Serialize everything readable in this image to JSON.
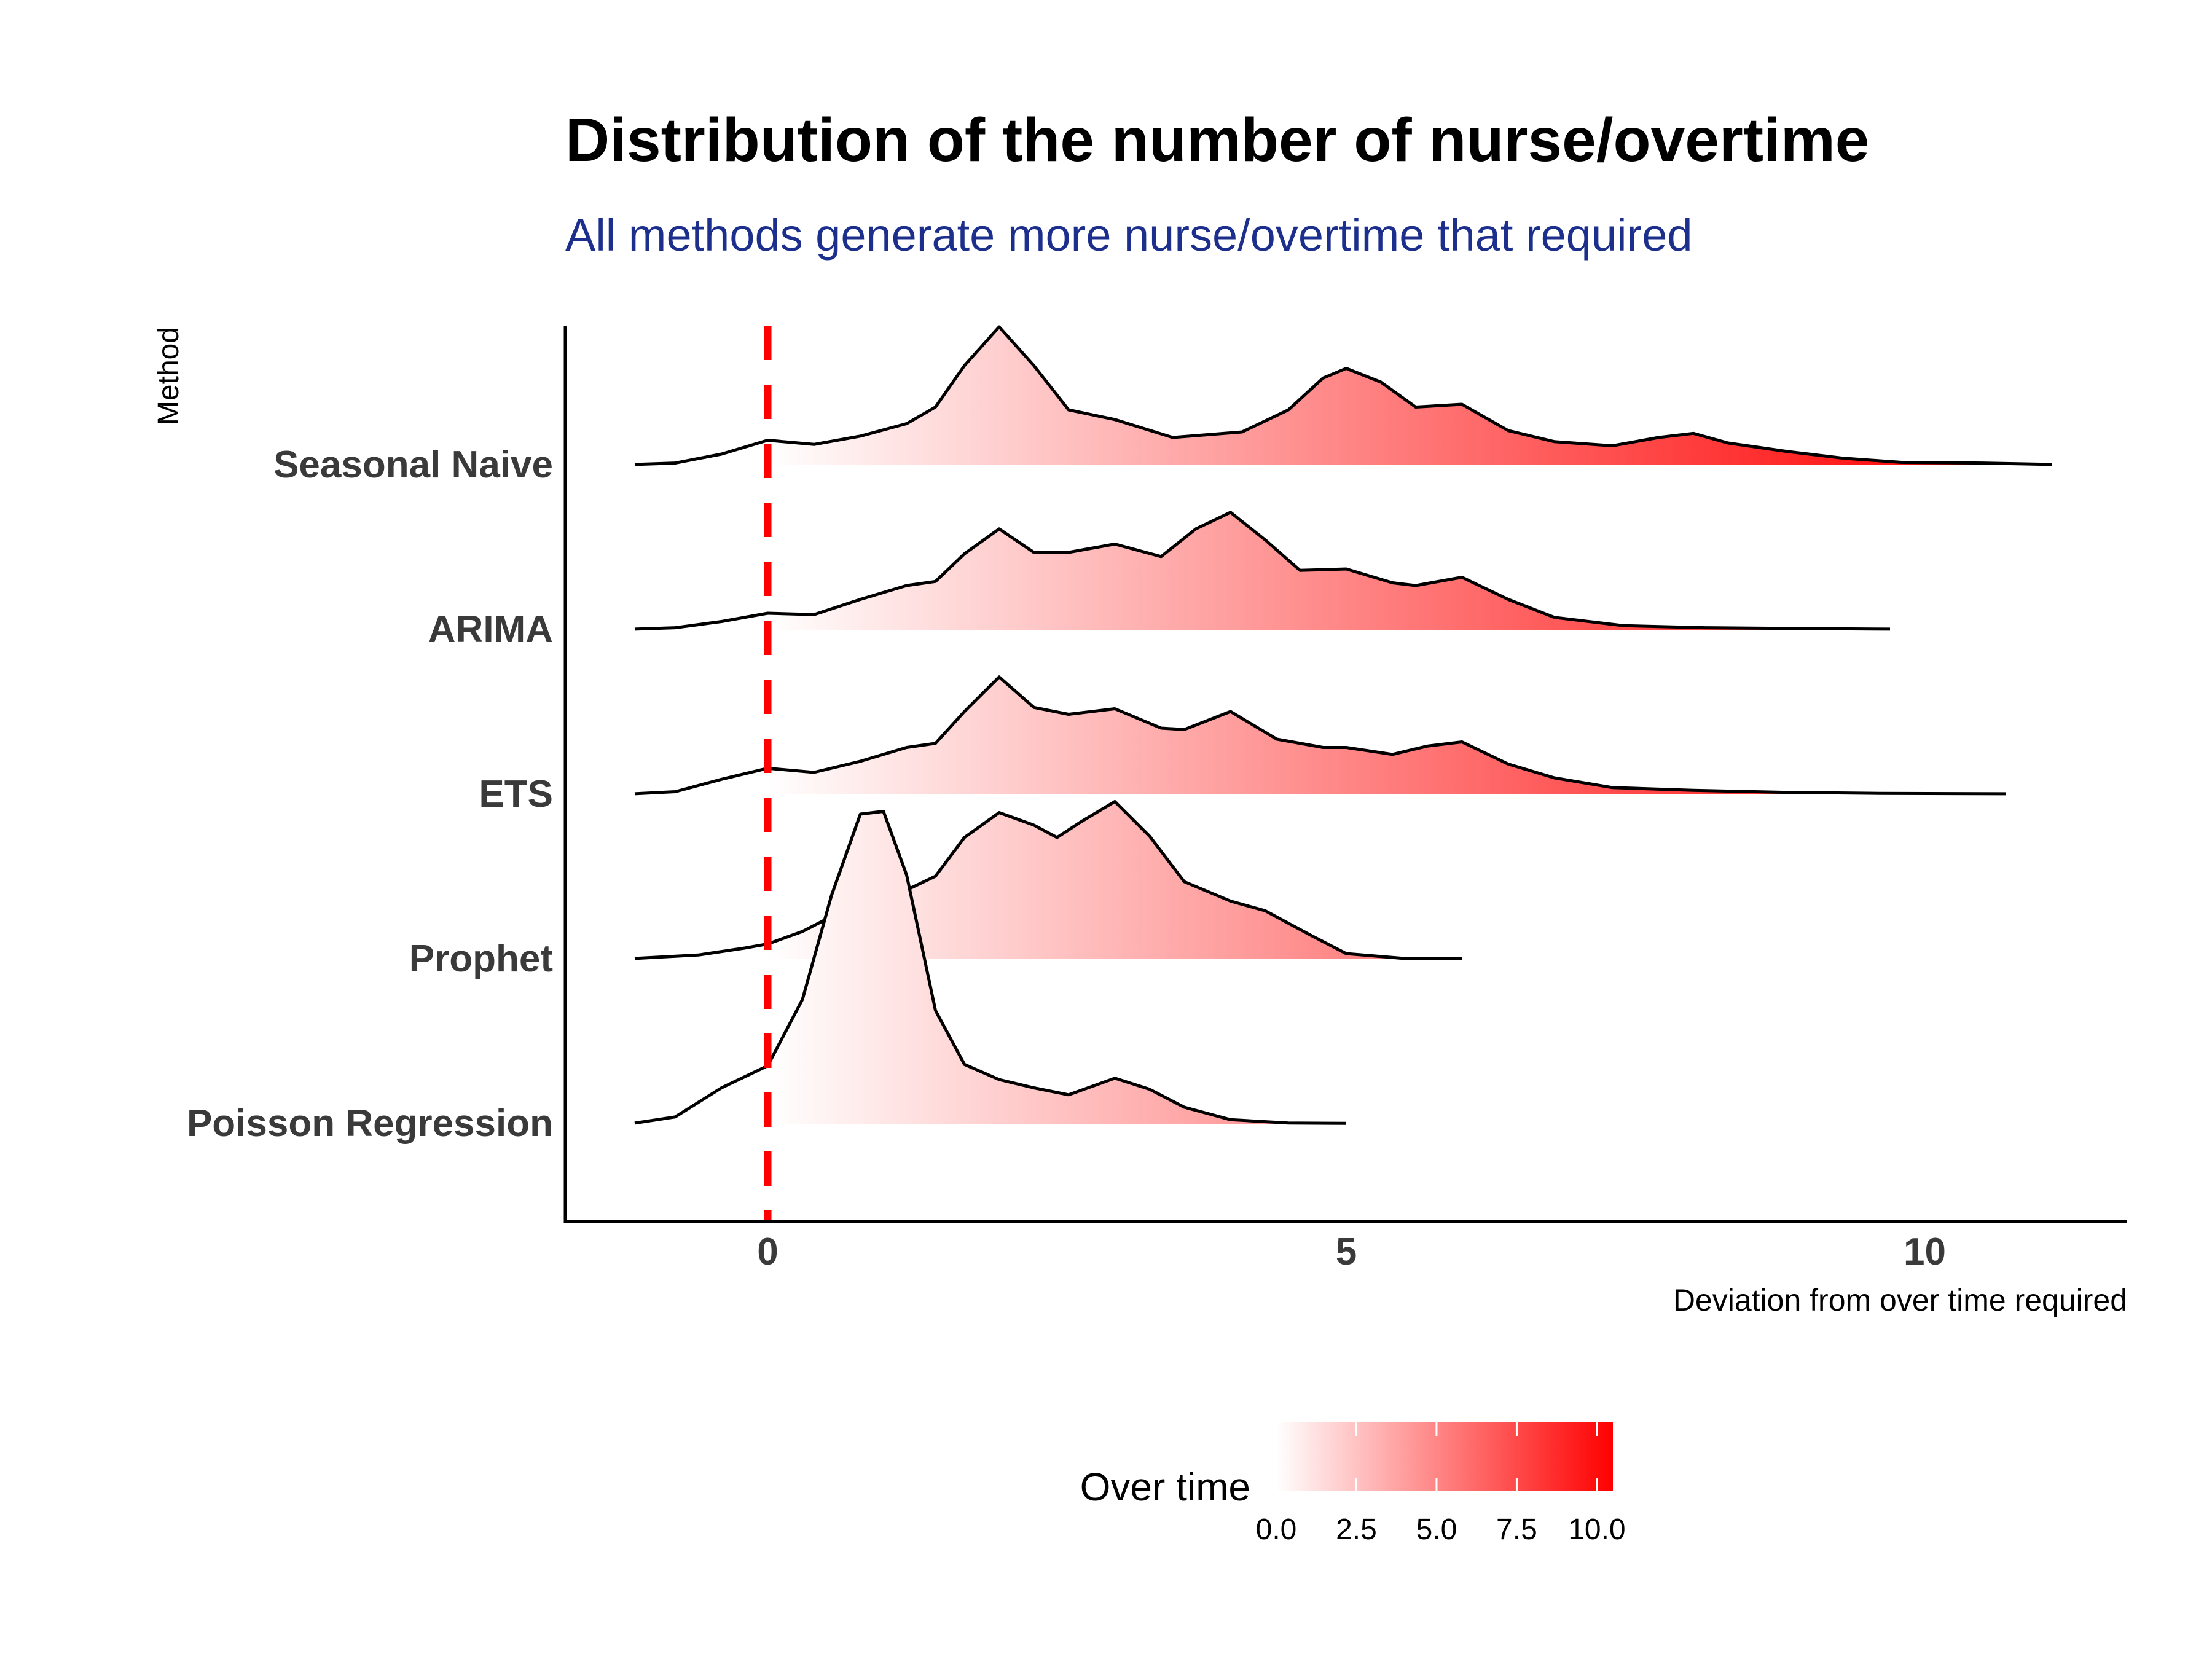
{
  "chart_data": {
    "type": "ridgeline",
    "title": "Distribution of the number of nurse/overtime",
    "subtitle": "All methods generate more nurse/overtime that required",
    "xlabel": "Deviation from over time required",
    "ylabel": "Method",
    "xlim": [
      -1.75,
      11.75
    ],
    "x_ticks": [
      "0",
      "5",
      "10"
    ],
    "x_tick_values": [
      0,
      5,
      10
    ],
    "categories": [
      "Seasonal Naive",
      "ARIMA",
      "ETS",
      "Prophet",
      "Poisson Regression"
    ],
    "reference_line": {
      "x": 0,
      "color": "#ff0000",
      "style": "dashed"
    },
    "fill_scale": {
      "title": "Over time",
      "low_color": "#ffffff",
      "high_color": "#ff0000",
      "domain": [
        0,
        10.5
      ],
      "tick_labels": [
        "0.0",
        "2.5",
        "5.0",
        "7.5",
        "10.0"
      ],
      "tick_values": [
        0,
        2.5,
        5,
        7.5,
        10
      ]
    },
    "series": [
      {
        "name": "Seasonal Naive",
        "x": [
          -1.15,
          -0.8,
          -0.4,
          0,
          0.4,
          0.8,
          1.2,
          1.45,
          1.7,
          2,
          2.3,
          2.6,
          3,
          3.5,
          4.1,
          4.5,
          4.8,
          5,
          5.3,
          5.6,
          6,
          6.4,
          6.8,
          7.3,
          7.7,
          8,
          8.3,
          8.8,
          9.3,
          9.8,
          10.5,
          11.1
        ],
        "density": [
          0.005,
          0.015,
          0.08,
          0.18,
          0.15,
          0.21,
          0.3,
          0.42,
          0.72,
          1.0,
          0.72,
          0.4,
          0.33,
          0.2,
          0.24,
          0.4,
          0.63,
          0.7,
          0.6,
          0.42,
          0.44,
          0.25,
          0.17,
          0.14,
          0.2,
          0.23,
          0.16,
          0.1,
          0.05,
          0.02,
          0.015,
          0.005
        ]
      },
      {
        "name": "ARIMA",
        "x": [
          -1.15,
          -0.8,
          -0.4,
          0,
          0.4,
          0.8,
          1.2,
          1.45,
          1.7,
          2,
          2.3,
          2.6,
          3,
          3.4,
          3.7,
          4,
          4.3,
          4.6,
          5,
          5.4,
          5.6,
          6,
          6.4,
          6.8,
          7.4,
          8.1,
          8.8,
          9.7
        ],
        "density": [
          0.005,
          0.015,
          0.06,
          0.12,
          0.11,
          0.22,
          0.32,
          0.35,
          0.55,
          0.73,
          0.56,
          0.56,
          0.62,
          0.53,
          0.73,
          0.85,
          0.65,
          0.43,
          0.44,
          0.34,
          0.32,
          0.38,
          0.22,
          0.09,
          0.03,
          0.015,
          0.01,
          0.005
        ]
      },
      {
        "name": "ETS",
        "x": [
          -1.15,
          -0.8,
          -0.4,
          0,
          0.4,
          0.8,
          1.2,
          1.45,
          1.7,
          2,
          2.3,
          2.6,
          3,
          3.4,
          3.6,
          4,
          4.4,
          4.8,
          5,
          5.4,
          5.7,
          6,
          6.4,
          6.8,
          7.3,
          8,
          8.8,
          9.6,
          10.7
        ],
        "density": [
          0.005,
          0.02,
          0.11,
          0.19,
          0.16,
          0.24,
          0.34,
          0.37,
          0.6,
          0.85,
          0.63,
          0.58,
          0.62,
          0.48,
          0.47,
          0.6,
          0.4,
          0.34,
          0.34,
          0.29,
          0.35,
          0.38,
          0.22,
          0.12,
          0.05,
          0.03,
          0.015,
          0.008,
          0.005
        ]
      },
      {
        "name": "Prophet",
        "x": [
          -1.15,
          -0.6,
          -0.2,
          0,
          0.3,
          0.6,
          0.9,
          1.2,
          1.45,
          1.7,
          2,
          2.3,
          2.5,
          2.7,
          3,
          3.3,
          3.6,
          4,
          4.3,
          4.7,
          5,
          5.5,
          6
        ],
        "density": [
          0.005,
          0.03,
          0.08,
          0.11,
          0.2,
          0.33,
          0.6,
          0.5,
          0.6,
          0.88,
          1.06,
          0.97,
          0.88,
          0.99,
          1.14,
          0.89,
          0.56,
          0.42,
          0.35,
          0.17,
          0.04,
          0.005,
          0.003
        ]
      },
      {
        "name": "Poisson Regression",
        "x": [
          -1.15,
          -0.8,
          -0.4,
          0,
          0.3,
          0.55,
          0.8,
          1,
          1.2,
          1.45,
          1.7,
          2,
          2.3,
          2.6,
          3,
          3.3,
          3.6,
          4,
          4.5,
          5
        ],
        "density": [
          0.005,
          0.05,
          0.26,
          0.42,
          0.9,
          1.65,
          2.24,
          2.26,
          1.8,
          0.82,
          0.43,
          0.32,
          0.26,
          0.21,
          0.33,
          0.25,
          0.12,
          0.03,
          0.006,
          0.003
        ]
      }
    ]
  }
}
